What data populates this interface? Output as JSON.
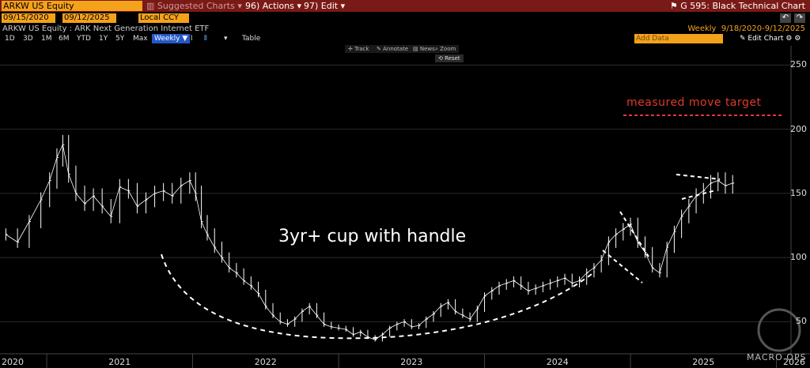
{
  "header": {
    "ticker": "ARKW US Equity",
    "menu": [
      {
        "label": "Suggested Charts",
        "dim": true
      },
      {
        "label": "Actions",
        "dim": false
      },
      {
        "label": "Edit",
        "dim": false
      }
    ],
    "menu_prefix": [
      "",
      "96)",
      "97)"
    ],
    "function_title": "G 595: Black Technical Chart"
  },
  "controls": {
    "start_date": "09/15/2020",
    "end_date": "09/12/2025",
    "currency": "Local CCY",
    "security_label": "ARKW US Equity : ARK Next Generation Internet ETF",
    "period_label": "Weekly",
    "range_label": "9/18/2020-9/12/2025",
    "timeframes": [
      "1D",
      "3D",
      "1M",
      "6M",
      "YTD",
      "1Y",
      "5Y",
      "Max"
    ],
    "selected_timeframe": "Weekly",
    "table_label": "Table",
    "add_data_placeholder": "Add Data",
    "edit_chart_label": "Edit Chart",
    "tools": [
      "Track",
      "Annotate",
      "News",
      "Zoom"
    ],
    "reset_label": "Reset"
  },
  "chart_data": {
    "type": "line",
    "title": "",
    "xlabel": "",
    "ylabel": "",
    "ylim": [
      25,
      265
    ],
    "y_ticks": [
      50,
      100,
      150,
      200,
      250
    ],
    "x_ticks": [
      "2020",
      "2021",
      "2022",
      "2023",
      "2024",
      "2025",
      "2026"
    ],
    "x_tick_positions_year": [
      2020.75,
      2021.5,
      2022.5,
      2023.5,
      2024.5,
      2025.5,
      2026.3
    ],
    "grid": true,
    "series": [
      {
        "x": [
          2020.72,
          2020.8,
          2020.88,
          2020.96,
          2021.02,
          2021.07,
          2021.11,
          2021.15,
          2021.2,
          2021.26,
          2021.32,
          2021.38,
          2021.44,
          2021.5,
          2021.56,
          2021.62,
          2021.68,
          2021.74,
          2021.8,
          2021.86,
          2021.92,
          2021.98,
          2022.02,
          2022.06,
          2022.1,
          2022.15,
          2022.2,
          2022.25,
          2022.3,
          2022.35,
          2022.4,
          2022.45,
          2022.5,
          2022.55,
          2022.6,
          2022.65,
          2022.7,
          2022.75,
          2022.8,
          2022.85,
          2022.9,
          2022.95,
          2023.0,
          2023.05,
          2023.1,
          2023.15,
          2023.2,
          2023.25,
          2023.3,
          2023.35,
          2023.4,
          2023.45,
          2023.5,
          2023.55,
          2023.6,
          2023.65,
          2023.7,
          2023.75,
          2023.8,
          2023.85,
          2023.9,
          2023.95,
          2024.0,
          2024.05,
          2024.1,
          2024.15,
          2024.2,
          2024.25,
          2024.3,
          2024.35,
          2024.4,
          2024.45,
          2024.5,
          2024.55,
          2024.6,
          2024.65,
          2024.7,
          2024.75,
          2024.8,
          2024.85,
          2024.9,
          2024.95,
          2025.0,
          2025.05,
          2025.1,
          2025.15,
          2025.2,
          2025.25,
          2025.3,
          2025.35,
          2025.4,
          2025.45,
          2025.5,
          2025.55,
          2025.6,
          2025.65,
          2025.7
        ],
        "values": [
          118,
          112,
          128,
          145,
          160,
          178,
          188,
          165,
          150,
          142,
          148,
          140,
          132,
          155,
          152,
          140,
          145,
          150,
          152,
          148,
          156,
          160,
          150,
          128,
          118,
          108,
          100,
          92,
          88,
          82,
          78,
          72,
          62,
          55,
          50,
          48,
          52,
          58,
          62,
          55,
          48,
          46,
          45,
          44,
          40,
          42,
          38,
          36,
          40,
          45,
          48,
          50,
          46,
          47,
          52,
          56,
          62,
          65,
          58,
          55,
          52,
          60,
          70,
          74,
          78,
          80,
          82,
          78,
          74,
          76,
          78,
          80,
          82,
          84,
          80,
          82,
          88,
          92,
          98,
          112,
          118,
          122,
          126,
          112,
          104,
          92,
          88,
          108,
          120,
          132,
          140,
          148,
          152,
          158,
          160,
          156,
          158
        ]
      }
    ],
    "annotations": [
      "3yr+ cup with handle",
      "measured move target"
    ]
  },
  "watermark": "MACRO OPS",
  "colors": {
    "topbar": "#7a1a16",
    "orange": "#f4a21a",
    "price": "#ffffff",
    "grid": "#2c2c2c",
    "target": "#e03a2a"
  }
}
